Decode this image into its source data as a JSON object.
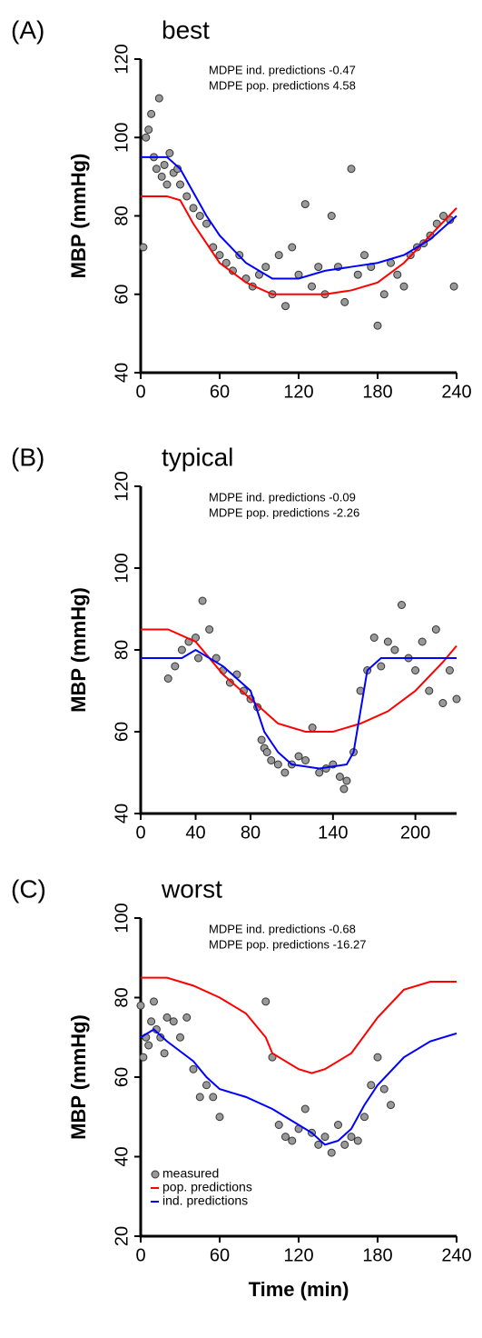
{
  "chart_data": [
    {
      "type": "scatter",
      "label": "(A)",
      "title": "best",
      "ylabel": "MBP (mmHg)",
      "annotations": [
        "MDPE ind. predictions -0.47",
        "MDPE pop. predictions 4.58"
      ],
      "xlim": [
        0,
        240
      ],
      "xticks": [
        0,
        60,
        120,
        180,
        240
      ],
      "ylim": [
        40,
        120
      ],
      "yticks": [
        40,
        60,
        80,
        100,
        120
      ],
      "series": [
        {
          "kind": "points",
          "color": "#999999",
          "x": [
            2,
            4,
            6,
            8,
            10,
            12,
            14,
            16,
            18,
            20,
            22,
            25,
            28,
            30,
            35,
            40,
            45,
            50,
            55,
            60,
            65,
            70,
            75,
            80,
            85,
            90,
            95,
            100,
            105,
            110,
            115,
            120,
            125,
            130,
            135,
            140,
            145,
            150,
            155,
            160,
            165,
            170,
            175,
            180,
            185,
            190,
            195,
            200,
            205,
            210,
            215,
            220,
            225,
            230,
            235,
            238
          ],
          "values": [
            72,
            100,
            102,
            106,
            95,
            92,
            110,
            90,
            93,
            88,
            96,
            91,
            92,
            88,
            85,
            82,
            80,
            78,
            72,
            70,
            68,
            66,
            70,
            64,
            62,
            65,
            67,
            60,
            70,
            57,
            72,
            65,
            83,
            62,
            67,
            60,
            80,
            67,
            58,
            92,
            65,
            70,
            67,
            52,
            60,
            68,
            65,
            62,
            70,
            72,
            73,
            75,
            78,
            80,
            79,
            62
          ]
        },
        {
          "kind": "line",
          "color": "#ff0000",
          "x": [
            0,
            20,
            30,
            40,
            50,
            60,
            80,
            100,
            120,
            140,
            160,
            180,
            200,
            220,
            240
          ],
          "values": [
            85,
            85,
            84,
            78,
            73,
            68,
            63,
            60,
            60,
            60,
            61,
            63,
            68,
            75,
            82
          ]
        },
        {
          "kind": "line",
          "color": "#0000ff",
          "x": [
            0,
            20,
            30,
            40,
            50,
            60,
            80,
            100,
            120,
            140,
            160,
            180,
            200,
            220,
            240
          ],
          "values": [
            95,
            95,
            92,
            86,
            80,
            75,
            68,
            64,
            64,
            66,
            67,
            68,
            70,
            74,
            80
          ]
        }
      ]
    },
    {
      "type": "scatter",
      "label": "(B)",
      "title": "typical",
      "ylabel": "MBP (mmHg)",
      "annotations": [
        "MDPE ind. predictions -0.09",
        "MDPE pop. predictions -2.26"
      ],
      "xlim": [
        0,
        230
      ],
      "xticks": [
        0,
        40,
        80,
        140,
        200
      ],
      "ylim": [
        40,
        120
      ],
      "yticks": [
        40,
        60,
        80,
        100,
        120
      ],
      "series": [
        {
          "kind": "points",
          "color": "#999999",
          "x": [
            20,
            25,
            30,
            35,
            40,
            42,
            45,
            50,
            55,
            60,
            65,
            70,
            75,
            80,
            85,
            88,
            90,
            92,
            95,
            100,
            105,
            110,
            115,
            120,
            125,
            130,
            135,
            140,
            145,
            148,
            150,
            155,
            160,
            165,
            170,
            175,
            180,
            185,
            190,
            195,
            200,
            205,
            210,
            215,
            220,
            225,
            230
          ],
          "values": [
            73,
            76,
            80,
            82,
            83,
            78,
            92,
            85,
            78,
            75,
            72,
            74,
            70,
            68,
            66,
            58,
            56,
            55,
            53,
            52,
            50,
            52,
            54,
            53,
            61,
            50,
            51,
            52,
            49,
            46,
            48,
            55,
            70,
            75,
            83,
            76,
            82,
            80,
            91,
            78,
            75,
            82,
            70,
            85,
            67,
            75,
            68
          ]
        },
        {
          "kind": "line",
          "color": "#ff0000",
          "x": [
            0,
            20,
            40,
            60,
            80,
            100,
            120,
            140,
            160,
            180,
            200,
            220,
            230
          ],
          "values": [
            85,
            85,
            82,
            74,
            68,
            62,
            60,
            60,
            62,
            65,
            70,
            77,
            81
          ]
        },
        {
          "kind": "line",
          "color": "#0000ff",
          "x": [
            0,
            30,
            40,
            60,
            70,
            80,
            90,
            100,
            110,
            130,
            150,
            155,
            160,
            165,
            175,
            230
          ],
          "values": [
            78,
            78,
            80,
            76,
            73,
            70,
            60,
            55,
            52,
            51,
            52,
            55,
            65,
            75,
            78,
            78
          ]
        }
      ]
    },
    {
      "type": "scatter",
      "label": "(C)",
      "title": "worst",
      "ylabel": "MBP (mmHg)",
      "xlabel": "Time (min)",
      "annotations": [
        "MDPE ind. predictions -0.68",
        "MDPE pop. predictions -16.27"
      ],
      "xlim": [
        0,
        240
      ],
      "xticks": [
        0,
        60,
        120,
        180,
        240
      ],
      "ylim": [
        20,
        100
      ],
      "yticks": [
        20,
        40,
        60,
        80,
        100
      ],
      "legend": "lower left",
      "series": [
        {
          "kind": "points",
          "name": "measured",
          "color": "#999999",
          "x": [
            0,
            2,
            4,
            6,
            8,
            10,
            12,
            15,
            18,
            20,
            25,
            30,
            35,
            40,
            45,
            50,
            55,
            60,
            95,
            100,
            105,
            110,
            115,
            120,
            125,
            130,
            135,
            140,
            145,
            150,
            155,
            160,
            165,
            170,
            175,
            180,
            185,
            190
          ],
          "values": [
            78,
            65,
            70,
            68,
            74,
            79,
            72,
            70,
            66,
            75,
            74,
            70,
            75,
            62,
            55,
            58,
            55,
            50,
            79,
            65,
            48,
            45,
            44,
            47,
            52,
            46,
            43,
            45,
            41,
            48,
            43,
            45,
            44,
            50,
            58,
            65,
            57,
            53
          ]
        },
        {
          "kind": "line",
          "name": "pop. predictions",
          "color": "#ff0000",
          "x": [
            0,
            20,
            40,
            60,
            80,
            95,
            100,
            120,
            130,
            140,
            160,
            180,
            200,
            220,
            240
          ],
          "values": [
            85,
            85,
            83,
            80,
            76,
            70,
            66,
            62,
            61,
            62,
            66,
            75,
            82,
            84,
            84
          ]
        },
        {
          "kind": "line",
          "name": "ind. predictions",
          "color": "#0000ff",
          "x": [
            0,
            10,
            20,
            40,
            50,
            60,
            80,
            100,
            110,
            120,
            130,
            140,
            150,
            160,
            170,
            180,
            200,
            220,
            240
          ],
          "values": [
            70,
            72,
            69,
            64,
            60,
            57,
            55,
            52,
            50,
            48,
            46,
            43,
            44,
            47,
            53,
            58,
            65,
            69,
            71
          ]
        }
      ]
    }
  ]
}
